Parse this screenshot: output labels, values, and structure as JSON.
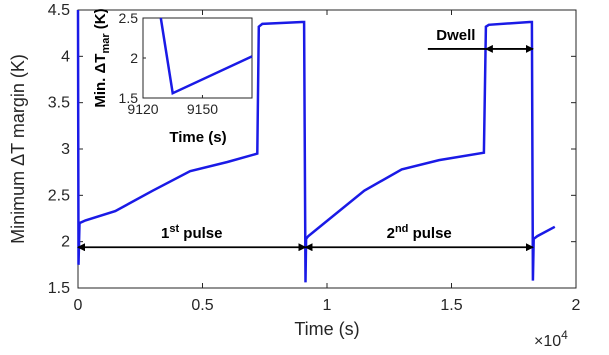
{
  "chart_data": {
    "type": "line",
    "xlabel": "Time (s)",
    "ylabel": "Minimum ΔT margin (K)",
    "x_exponent_label": "×10",
    "x_exponent_power": "4",
    "xlim": [
      0,
      20000
    ],
    "ylim": [
      1.5,
      4.5
    ],
    "x_ticks": [
      {
        "value": 0,
        "label": "0"
      },
      {
        "value": 5000,
        "label": "0.5"
      },
      {
        "value": 10000,
        "label": "1"
      },
      {
        "value": 15000,
        "label": "1.5"
      },
      {
        "value": 20000,
        "label": "2"
      }
    ],
    "y_ticks": [
      {
        "value": 1.5,
        "label": "1.5"
      },
      {
        "value": 2,
        "label": "2"
      },
      {
        "value": 2.5,
        "label": "2.5"
      },
      {
        "value": 3,
        "label": "3"
      },
      {
        "value": 3.5,
        "label": "3.5"
      },
      {
        "value": 4,
        "label": "4"
      },
      {
        "value": 4.5,
        "label": "4.5"
      }
    ],
    "grid": false,
    "line_color": "#1a1ae6",
    "series": [
      {
        "x": [
          0,
          20,
          60,
          300,
          1500,
          3000,
          4500,
          6000,
          7200,
          7260,
          7400,
          9000,
          9080,
          9135,
          9160,
          9250,
          9800,
          11500,
          13000,
          14500,
          16300,
          16380,
          16500,
          18150,
          18230,
          18270,
          18300,
          18450,
          19150
        ],
        "y": [
          4.5,
          1.75,
          2.2,
          2.23,
          2.33,
          2.55,
          2.76,
          2.86,
          2.95,
          4.32,
          4.35,
          4.37,
          4.37,
          1.56,
          2.03,
          2.06,
          2.18,
          2.55,
          2.78,
          2.88,
          2.96,
          4.32,
          4.34,
          4.37,
          4.37,
          1.58,
          2.03,
          2.06,
          2.16
        ]
      }
    ],
    "annotations": {
      "pulse1_label": "1",
      "pulse1_sup": "st",
      "pulse1_word": " pulse",
      "pulse2_label": "2",
      "pulse2_sup": "nd",
      "pulse2_word": " pulse",
      "dwell_label": "Dwell",
      "pulse1_range": [
        0,
        9135
      ],
      "pulse2_range": [
        9135,
        18270
      ],
      "dwell_range": [
        16380,
        18270
      ],
      "pulse_arrow_y": 1.94,
      "dwell_arrow_y": 4.08
    },
    "inset": {
      "xlabel": "Time (s)",
      "ylabel_prefix": "Min. ΔT",
      "ylabel_sub": "mar",
      "ylabel_suffix": " (K)",
      "xlim": [
        9120,
        9175
      ],
      "ylim": [
        1.5,
        2.5
      ],
      "x_ticks": [
        {
          "value": 9120,
          "label": "9120"
        },
        {
          "value": 9150,
          "label": "9150"
        }
      ],
      "y_ticks": [
        {
          "value": 1.5,
          "label": "1.5"
        },
        {
          "value": 2,
          "label": "2"
        },
        {
          "value": 2.5,
          "label": "2.5"
        }
      ],
      "x": [
        9129,
        9135,
        9175
      ],
      "y": [
        2.5,
        1.56,
        2.02
      ]
    }
  }
}
